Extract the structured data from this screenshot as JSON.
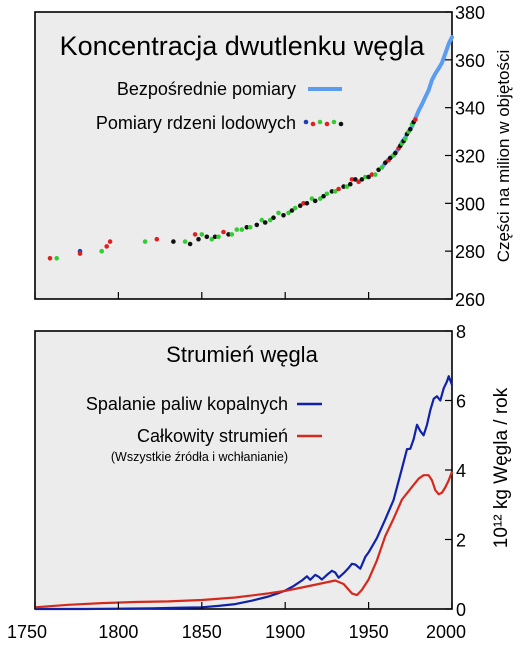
{
  "chart_data": [
    {
      "type": "line",
      "title": "Koncentracja dwutlenku węgla",
      "ylabel": "Części na milion w objętości",
      "xlim": [
        1750,
        2000
      ],
      "ylim": [
        260,
        380
      ],
      "y_ticks": [
        "260",
        "280",
        "300",
        "320",
        "340",
        "360",
        "380"
      ],
      "y_tick_values": [
        260,
        280,
        300,
        320,
        340,
        360,
        380
      ],
      "x_ticks": [
        1750,
        1800,
        1850,
        1900,
        1950,
        2000
      ],
      "grid": false,
      "legend_position": "top-right",
      "series": [
        {
          "name": "Bezpośrednie pomiary",
          "kind": "line",
          "color": "#5b9bf0",
          "x": [
            1958,
            1960,
            1962,
            1964,
            1966,
            1968,
            1970,
            1972,
            1974,
            1976,
            1978,
            1980,
            1982,
            1984,
            1986,
            1988,
            1990,
            1992,
            1994,
            1996,
            1998,
            2000
          ],
          "y": [
            315.0,
            316.9,
            318.4,
            319.6,
            321.1,
            322.9,
            325.7,
            327.4,
            330.2,
            332.1,
            335.4,
            338.7,
            341.4,
            344.4,
            347.2,
            351.6,
            354.2,
            356.4,
            358.8,
            362.6,
            366.7,
            369.5
          ]
        },
        {
          "name": "Pomiary rdzeni lodowych",
          "kind": "scatter",
          "colors": [
            "#1b3fb0",
            "#e02020",
            "#33cc33",
            "#111111"
          ],
          "points": [
            {
              "x": 1759,
              "y": 277,
              "c": 1
            },
            {
              "x": 1763,
              "y": 277,
              "c": 2
            },
            {
              "x": 1777,
              "y": 280,
              "c": 0
            },
            {
              "x": 1777,
              "y": 279,
              "c": 1
            },
            {
              "x": 1790,
              "y": 280,
              "c": 2
            },
            {
              "x": 1793,
              "y": 282,
              "c": 1
            },
            {
              "x": 1795,
              "y": 284,
              "c": 1
            },
            {
              "x": 1816,
              "y": 284,
              "c": 2
            },
            {
              "x": 1823,
              "y": 285,
              "c": 1
            },
            {
              "x": 1833,
              "y": 284,
              "c": 3
            },
            {
              "x": 1840,
              "y": 284,
              "c": 2
            },
            {
              "x": 1843,
              "y": 283,
              "c": 3
            },
            {
              "x": 1846,
              "y": 287,
              "c": 1
            },
            {
              "x": 1848,
              "y": 285,
              "c": 3
            },
            {
              "x": 1850,
              "y": 287,
              "c": 2
            },
            {
              "x": 1853,
              "y": 286,
              "c": 3
            },
            {
              "x": 1856,
              "y": 285,
              "c": 2
            },
            {
              "x": 1858,
              "y": 286,
              "c": 3
            },
            {
              "x": 1860,
              "y": 286,
              "c": 2
            },
            {
              "x": 1863,
              "y": 288,
              "c": 1
            },
            {
              "x": 1866,
              "y": 287,
              "c": 3
            },
            {
              "x": 1868,
              "y": 287,
              "c": 2
            },
            {
              "x": 1871,
              "y": 289,
              "c": 2
            },
            {
              "x": 1874,
              "y": 289,
              "c": 2
            },
            {
              "x": 1877,
              "y": 290,
              "c": 3
            },
            {
              "x": 1879,
              "y": 290,
              "c": 2
            },
            {
              "x": 1883,
              "y": 291,
              "c": 3
            },
            {
              "x": 1886,
              "y": 293,
              "c": 2
            },
            {
              "x": 1888,
              "y": 292,
              "c": 3
            },
            {
              "x": 1891,
              "y": 293,
              "c": 2
            },
            {
              "x": 1893,
              "y": 294,
              "c": 3
            },
            {
              "x": 1896,
              "y": 296,
              "c": 2
            },
            {
              "x": 1899,
              "y": 295,
              "c": 3
            },
            {
              "x": 1902,
              "y": 296,
              "c": 2
            },
            {
              "x": 1904,
              "y": 297,
              "c": 3
            },
            {
              "x": 1906,
              "y": 298,
              "c": 2
            },
            {
              "x": 1909,
              "y": 299,
              "c": 3
            },
            {
              "x": 1911,
              "y": 300,
              "c": 1
            },
            {
              "x": 1913,
              "y": 300,
              "c": 3
            },
            {
              "x": 1916,
              "y": 302,
              "c": 2
            },
            {
              "x": 1918,
              "y": 301,
              "c": 3
            },
            {
              "x": 1921,
              "y": 302,
              "c": 2
            },
            {
              "x": 1923,
              "y": 303,
              "c": 3
            },
            {
              "x": 1925,
              "y": 304,
              "c": 2
            },
            {
              "x": 1928,
              "y": 305,
              "c": 3
            },
            {
              "x": 1930,
              "y": 305,
              "c": 2
            },
            {
              "x": 1932,
              "y": 306,
              "c": 1
            },
            {
              "x": 1935,
              "y": 307,
              "c": 3
            },
            {
              "x": 1937,
              "y": 307,
              "c": 2
            },
            {
              "x": 1939,
              "y": 308,
              "c": 3
            },
            {
              "x": 1940,
              "y": 310,
              "c": 1
            },
            {
              "x": 1942,
              "y": 310,
              "c": 3
            },
            {
              "x": 1944,
              "y": 309,
              "c": 1
            },
            {
              "x": 1946,
              "y": 310,
              "c": 3
            },
            {
              "x": 1948,
              "y": 311,
              "c": 2
            },
            {
              "x": 1950,
              "y": 311,
              "c": 3
            },
            {
              "x": 1952,
              "y": 312,
              "c": 1
            },
            {
              "x": 1954,
              "y": 312,
              "c": 2
            },
            {
              "x": 1956,
              "y": 314,
              "c": 3
            },
            {
              "x": 1958,
              "y": 315,
              "c": 2
            },
            {
              "x": 1960,
              "y": 317,
              "c": 3
            },
            {
              "x": 1962,
              "y": 318,
              "c": 1
            },
            {
              "x": 1963,
              "y": 319,
              "c": 3
            },
            {
              "x": 1965,
              "y": 320,
              "c": 2
            },
            {
              "x": 1966,
              "y": 321,
              "c": 3
            },
            {
              "x": 1968,
              "y": 323,
              "c": 1
            },
            {
              "x": 1969,
              "y": 324,
              "c": 3
            },
            {
              "x": 1970,
              "y": 325,
              "c": 2
            },
            {
              "x": 1971,
              "y": 326,
              "c": 3
            },
            {
              "x": 1972,
              "y": 327,
              "c": 2
            },
            {
              "x": 1973,
              "y": 329,
              "c": 3
            },
            {
              "x": 1974,
              "y": 330,
              "c": 2
            },
            {
              "x": 1975,
              "y": 331,
              "c": 3
            },
            {
              "x": 1976,
              "y": 333,
              "c": 2
            },
            {
              "x": 1977,
              "y": 334,
              "c": 3
            },
            {
              "x": 1978,
              "y": 335,
              "c": 1
            }
          ]
        }
      ]
    },
    {
      "type": "line",
      "title": "Strumień węgla",
      "ylabel": "10¹² kg Węgla / rok",
      "xlim": [
        1750,
        2000
      ],
      "ylim": [
        0,
        8
      ],
      "x_ticks": [
        1750,
        1800,
        1850,
        1900,
        1950,
        2000
      ],
      "y_ticks": [
        0,
        2,
        4,
        6,
        8
      ],
      "grid": false,
      "legend_position": "top-left",
      "series": [
        {
          "name": "Spalanie paliw kopalnych",
          "color": "#1022a8",
          "x": [
            1750,
            1780,
            1800,
            1820,
            1840,
            1850,
            1860,
            1870,
            1880,
            1890,
            1895,
            1900,
            1905,
            1910,
            1913,
            1915,
            1918,
            1920,
            1922,
            1925,
            1928,
            1930,
            1932,
            1935,
            1938,
            1940,
            1942,
            1945,
            1948,
            1950,
            1955,
            1960,
            1965,
            1970,
            1973,
            1975,
            1977,
            1979,
            1981,
            1983,
            1985,
            1987,
            1989,
            1991,
            1993,
            1995,
            1997,
            1998,
            2000
          ],
          "y": [
            0.0,
            0.0,
            0.01,
            0.02,
            0.04,
            0.05,
            0.09,
            0.14,
            0.24,
            0.36,
            0.44,
            0.53,
            0.66,
            0.82,
            0.94,
            0.84,
            0.98,
            0.93,
            0.85,
            0.98,
            1.1,
            1.05,
            0.9,
            1.03,
            1.18,
            1.3,
            1.28,
            1.16,
            1.5,
            1.63,
            2.04,
            2.58,
            3.14,
            4.05,
            4.6,
            4.61,
            4.88,
            5.3,
            5.12,
            5.0,
            5.3,
            5.72,
            6.05,
            6.12,
            6.0,
            6.35,
            6.55,
            6.7,
            6.45
          ]
        },
        {
          "name": "Całkowity strumień",
          "subtitle": "(Wszystkie źródła i wchłanianie)",
          "color": "#d42a1e",
          "x": [
            1750,
            1770,
            1790,
            1810,
            1830,
            1850,
            1870,
            1890,
            1900,
            1910,
            1920,
            1930,
            1935,
            1940,
            1943,
            1946,
            1950,
            1955,
            1960,
            1965,
            1970,
            1975,
            1980,
            1983,
            1986,
            1988,
            1990,
            1992,
            1994,
            1996,
            1998,
            2000
          ],
          "y": [
            0.05,
            0.12,
            0.17,
            0.2,
            0.22,
            0.26,
            0.33,
            0.45,
            0.52,
            0.62,
            0.72,
            0.82,
            0.72,
            0.45,
            0.4,
            0.55,
            0.85,
            1.4,
            2.1,
            2.6,
            3.15,
            3.45,
            3.75,
            3.85,
            3.85,
            3.7,
            3.42,
            3.3,
            3.35,
            3.5,
            3.7,
            3.95
          ]
        }
      ]
    }
  ]
}
